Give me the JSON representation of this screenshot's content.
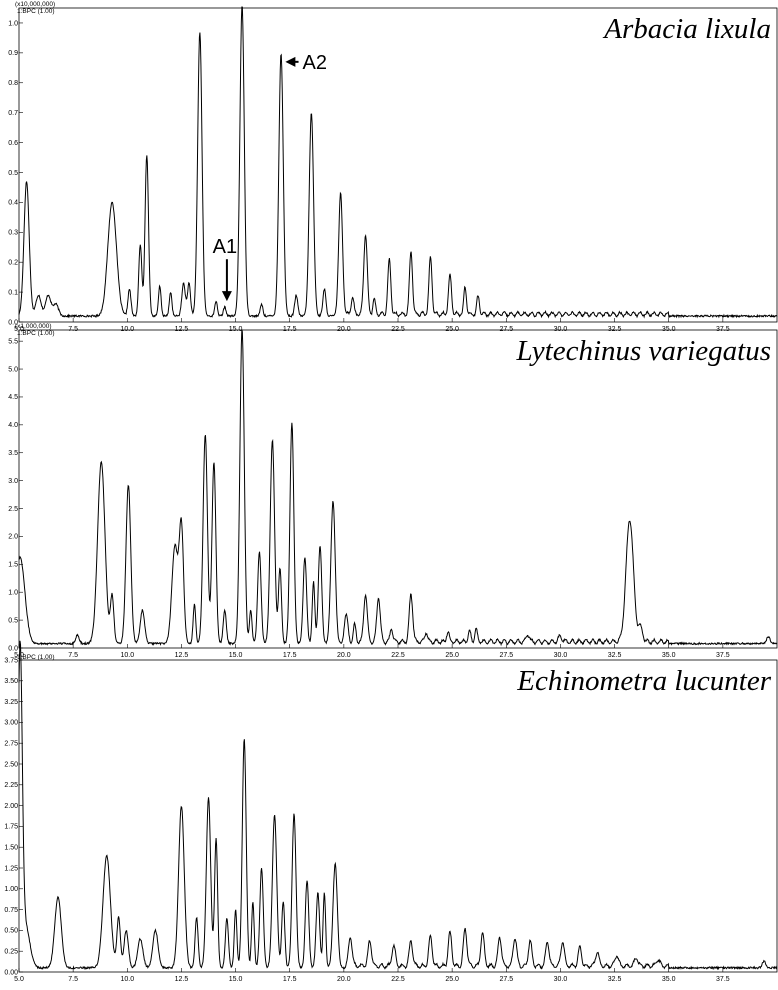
{
  "chart_data": [
    {
      "type": "line",
      "title": "Arbacia lixula",
      "scale_label": "(x10,000,000)",
      "trace_label": "1:BPC (1.00)",
      "xlim": [
        5.0,
        40.0
      ],
      "ylim": [
        0,
        1.05
      ],
      "xticks": [
        "5.0",
        "7.5",
        "10.0",
        "12.5",
        "15.0",
        "17.5",
        "20.0",
        "22.5",
        "25.0",
        "27.5",
        "30.0",
        "32.5",
        "35.0",
        "37.5"
      ],
      "yticks": [
        "0.0",
        "0.1",
        "0.2",
        "0.3",
        "0.4",
        "0.5",
        "0.6",
        "0.7",
        "0.8",
        "0.9",
        "1.0"
      ],
      "baseline": 0.02,
      "peaks": [
        [
          5.35,
          0.45,
          0.12
        ],
        [
          5.9,
          0.07,
          0.12
        ],
        [
          6.35,
          0.07,
          0.12
        ],
        [
          6.7,
          0.04,
          0.12
        ],
        [
          9.3,
          0.38,
          0.2
        ],
        [
          10.1,
          0.09,
          0.07
        ],
        [
          10.6,
          0.24,
          0.07
        ],
        [
          10.9,
          0.54,
          0.08
        ],
        [
          11.5,
          0.1,
          0.06
        ],
        [
          12.0,
          0.08,
          0.06
        ],
        [
          12.6,
          0.11,
          0.08
        ],
        [
          12.85,
          0.11,
          0.07
        ],
        [
          13.35,
          0.95,
          0.1
        ],
        [
          14.1,
          0.05,
          0.06
        ],
        [
          14.5,
          0.03,
          0.06
        ],
        [
          15.3,
          1.04,
          0.1
        ],
        [
          16.2,
          0.04,
          0.06
        ],
        [
          17.1,
          0.88,
          0.1
        ],
        [
          17.8,
          0.07,
          0.07
        ],
        [
          18.5,
          0.68,
          0.1
        ],
        [
          19.1,
          0.09,
          0.07
        ],
        [
          19.85,
          0.41,
          0.09
        ],
        [
          20.4,
          0.06,
          0.06
        ],
        [
          21.0,
          0.27,
          0.08
        ],
        [
          21.4,
          0.05,
          0.06
        ],
        [
          22.1,
          0.18,
          0.07
        ],
        [
          23.1,
          0.21,
          0.07
        ],
        [
          24.0,
          0.19,
          0.07
        ],
        [
          24.9,
          0.13,
          0.07
        ],
        [
          25.6,
          0.09,
          0.06
        ],
        [
          26.2,
          0.06,
          0.06
        ]
      ],
      "annotations": [
        {
          "text": "A1",
          "x": 14.6,
          "y": 0.23,
          "arrow_to": [
            14.6,
            0.07
          ]
        },
        {
          "text": "A2",
          "x": 18.0,
          "y": 0.87,
          "arrow_to": [
            17.3,
            0.87
          ]
        }
      ]
    },
    {
      "type": "line",
      "title": "Lytechinus variegatus",
      "scale_label": "(x1,000,000)",
      "trace_label": "1:BPC (1.00)",
      "xlim": [
        5.0,
        40.0
      ],
      "ylim": [
        0,
        5.7
      ],
      "xticks": [
        "5.0",
        "7.5",
        "10.0",
        "12.5",
        "15.0",
        "17.5",
        "20.0",
        "22.5",
        "25.0",
        "27.5",
        "30.0",
        "32.5",
        "35.0",
        "37.5"
      ],
      "yticks": [
        "0.0",
        "0.5",
        "1.0",
        "1.5",
        "2.0",
        "2.5",
        "3.0",
        "3.5",
        "4.0",
        "4.5",
        "5.0",
        "5.5"
      ],
      "baseline": 0.08,
      "peaks": [
        [
          5.05,
          1.55,
          0.22
        ],
        [
          7.7,
          0.15,
          0.08
        ],
        [
          8.8,
          3.25,
          0.17
        ],
        [
          9.3,
          0.85,
          0.08
        ],
        [
          10.05,
          2.85,
          0.11
        ],
        [
          10.7,
          0.6,
          0.1
        ],
        [
          12.2,
          1.75,
          0.14
        ],
        [
          12.5,
          2.05,
          0.1
        ],
        [
          13.1,
          0.7,
          0.06
        ],
        [
          13.6,
          3.75,
          0.1
        ],
        [
          14.0,
          3.25,
          0.09
        ],
        [
          14.5,
          0.6,
          0.07
        ],
        [
          15.3,
          5.65,
          0.1
        ],
        [
          15.7,
          0.6,
          0.06
        ],
        [
          16.1,
          1.65,
          0.08
        ],
        [
          16.7,
          3.65,
          0.1
        ],
        [
          17.05,
          1.35,
          0.07
        ],
        [
          17.6,
          3.95,
          0.09
        ],
        [
          18.2,
          1.55,
          0.08
        ],
        [
          18.6,
          1.1,
          0.06
        ],
        [
          18.9,
          1.75,
          0.08
        ],
        [
          19.5,
          2.55,
          0.1
        ],
        [
          20.1,
          0.5,
          0.08
        ],
        [
          20.5,
          0.3,
          0.06
        ],
        [
          21.0,
          0.85,
          0.08
        ],
        [
          21.6,
          0.8,
          0.08
        ],
        [
          22.2,
          0.25,
          0.06
        ],
        [
          23.1,
          0.85,
          0.08
        ],
        [
          23.8,
          0.18,
          0.06
        ],
        [
          24.8,
          0.18,
          0.06
        ],
        [
          25.8,
          0.18,
          0.06
        ],
        [
          26.1,
          0.22,
          0.06
        ],
        [
          28.5,
          0.13,
          0.07
        ],
        [
          30.0,
          0.1,
          0.08
        ],
        [
          33.2,
          2.2,
          0.17
        ],
        [
          33.7,
          0.25,
          0.1
        ],
        [
          39.6,
          0.12,
          0.08
        ]
      ],
      "annotations": []
    },
    {
      "type": "line",
      "title": "Echinometra lucunter",
      "scale_label": "",
      "trace_label": "1:BPC (1.00)",
      "xlim": [
        5.0,
        40.0
      ],
      "ylim": [
        0,
        3.75
      ],
      "xticks": [
        "5.0",
        "7.5",
        "10.0",
        "12.5",
        "15.0",
        "17.5",
        "20.0",
        "22.5",
        "25.0",
        "27.5",
        "30.0",
        "32.5",
        "35.0",
        "37.5"
      ],
      "yticks": [
        "0.00",
        "0.25",
        "0.50",
        "0.75",
        "1.00",
        "1.25",
        "1.50",
        "1.75",
        "2.00",
        "2.25",
        "2.50",
        "2.75",
        "3.00",
        "3.25",
        "3.50",
        "3.75"
      ],
      "baseline": 0.05,
      "peaks": [
        [
          5.05,
          3.7,
          0.1
        ],
        [
          5.3,
          0.5,
          0.2
        ],
        [
          6.8,
          0.85,
          0.15
        ],
        [
          9.05,
          1.35,
          0.17
        ],
        [
          9.6,
          0.6,
          0.08
        ],
        [
          9.95,
          0.45,
          0.1
        ],
        [
          10.6,
          0.35,
          0.12
        ],
        [
          11.3,
          0.45,
          0.12
        ],
        [
          12.5,
          1.95,
          0.13
        ],
        [
          13.2,
          0.6,
          0.07
        ],
        [
          13.75,
          2.05,
          0.1
        ],
        [
          14.1,
          1.55,
          0.07
        ],
        [
          14.6,
          0.6,
          0.07
        ],
        [
          15.0,
          0.7,
          0.06
        ],
        [
          15.4,
          2.75,
          0.09
        ],
        [
          15.8,
          0.8,
          0.06
        ],
        [
          16.2,
          1.2,
          0.08
        ],
        [
          16.8,
          1.85,
          0.1
        ],
        [
          17.2,
          0.8,
          0.07
        ],
        [
          17.7,
          1.85,
          0.09
        ],
        [
          18.3,
          1.05,
          0.08
        ],
        [
          18.8,
          0.9,
          0.08
        ],
        [
          19.1,
          0.9,
          0.06
        ],
        [
          19.6,
          1.25,
          0.1
        ],
        [
          20.3,
          0.35,
          0.08
        ],
        [
          21.2,
          0.3,
          0.08
        ],
        [
          22.3,
          0.25,
          0.08
        ],
        [
          23.1,
          0.3,
          0.08
        ],
        [
          24.0,
          0.35,
          0.08
        ],
        [
          24.9,
          0.4,
          0.08
        ],
        [
          25.6,
          0.45,
          0.08
        ],
        [
          26.4,
          0.4,
          0.08
        ],
        [
          27.2,
          0.35,
          0.08
        ],
        [
          27.9,
          0.35,
          0.08
        ],
        [
          28.6,
          0.3,
          0.08
        ],
        [
          29.4,
          0.3,
          0.08
        ],
        [
          30.1,
          0.3,
          0.08
        ],
        [
          30.9,
          0.22,
          0.08
        ],
        [
          31.7,
          0.17,
          0.08
        ],
        [
          32.6,
          0.13,
          0.08
        ],
        [
          33.5,
          0.1,
          0.08
        ],
        [
          34.5,
          0.08,
          0.08
        ],
        [
          39.4,
          0.08,
          0.08
        ]
      ],
      "annotations": []
    }
  ]
}
